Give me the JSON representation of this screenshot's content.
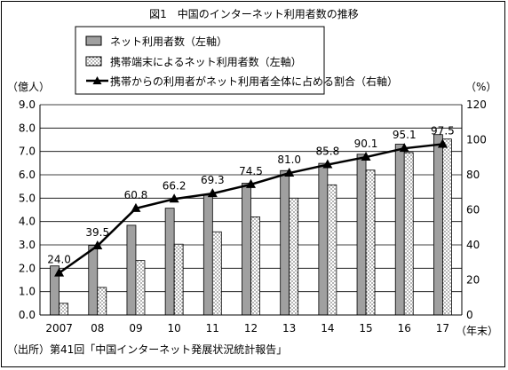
{
  "chart_data": {
    "type": "bar",
    "title": "図1　中国のインターネット利用者数の推移",
    "categories": [
      "2007",
      "08",
      "09",
      "10",
      "11",
      "12",
      "13",
      "14",
      "15",
      "16",
      "17"
    ],
    "x_unit_label": "（年末）",
    "left_axis": {
      "unit_label": "（億人）",
      "ylim": [
        0.0,
        9.0
      ],
      "ticks": [
        "0.0",
        "1.0",
        "2.0",
        "3.0",
        "4.0",
        "5.0",
        "6.0",
        "7.0",
        "8.0",
        "9.0"
      ]
    },
    "right_axis": {
      "unit_label": "（%）",
      "ylim": [
        0,
        120
      ],
      "ticks": [
        "0",
        "20",
        "40",
        "60",
        "80",
        "100",
        "120"
      ]
    },
    "series": [
      {
        "name": "ネット利用者数（左軸）",
        "type": "bar",
        "axis": "left",
        "color": "#a0a0a0",
        "values": [
          2.1,
          2.98,
          3.84,
          4.57,
          5.13,
          5.64,
          6.18,
          6.49,
          6.88,
          7.31,
          7.72
        ]
      },
      {
        "name": "携帯端末によるネット利用者数（左軸）",
        "type": "bar",
        "axis": "left",
        "color": "#ffffff",
        "pattern": "dotted",
        "values": [
          0.5,
          1.18,
          2.33,
          3.03,
          3.56,
          4.2,
          5.0,
          5.57,
          6.2,
          6.95,
          7.53
        ]
      },
      {
        "name": "携帯からの利用者がネット利用者全体に占める割合（右軸）",
        "type": "line",
        "axis": "right",
        "color": "#000000",
        "marker": "triangle",
        "values": [
          24.0,
          39.5,
          60.8,
          66.2,
          69.3,
          74.5,
          81.0,
          85.8,
          90.1,
          95.1,
          97.5
        ],
        "labels": [
          "24.0",
          "39.5",
          "60.8",
          "66.2",
          "69.3",
          "74.5",
          "81.0",
          "85.8",
          "90.1",
          "95.1",
          "97.5"
        ]
      }
    ],
    "grid": true,
    "legend_position": "top"
  },
  "source_note": "（出所）第41回「中国インターネット発展状況統計報告」"
}
